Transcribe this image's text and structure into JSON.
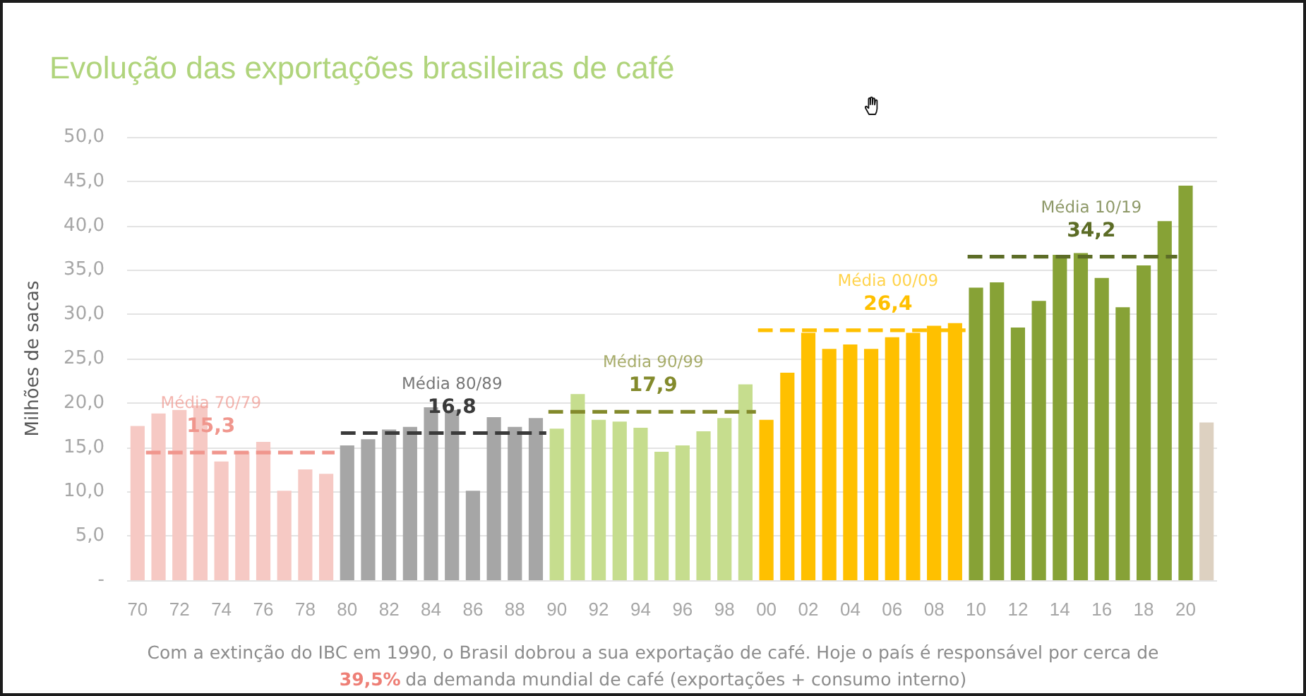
{
  "chart_data": {
    "type": "bar",
    "title": "Evolução das exportações brasileiras de café",
    "ylabel": "Milhões de sacas",
    "x": [
      1970,
      1971,
      1972,
      1973,
      1974,
      1975,
      1976,
      1977,
      1978,
      1979,
      1980,
      1981,
      1982,
      1983,
      1984,
      1985,
      1986,
      1987,
      1988,
      1989,
      1990,
      1991,
      1992,
      1993,
      1994,
      1995,
      1996,
      1997,
      1998,
      1999,
      2000,
      2001,
      2002,
      2003,
      2004,
      2005,
      2006,
      2007,
      2008,
      2009,
      2010,
      2011,
      2012,
      2013,
      2014,
      2015,
      2016,
      2017,
      2018,
      2019,
      2020,
      2021
    ],
    "series": [
      {
        "values": [
          17.4,
          18.8,
          19.2,
          19.7,
          13.4,
          14.5,
          15.6,
          10.1,
          12.5,
          12.0,
          15.2,
          15.9,
          17.0,
          17.3,
          19.5,
          19.2,
          10.1,
          18.4,
          17.3,
          18.3,
          17.1,
          21.0,
          18.1,
          17.9,
          17.2,
          14.5,
          15.2,
          16.8,
          18.3,
          22.1,
          18.1,
          23.4,
          27.9,
          26.1,
          26.6,
          26.1,
          27.4,
          27.9,
          28.7,
          29.0,
          33.0,
          33.6,
          28.5,
          31.5,
          36.7,
          36.9,
          34.1,
          30.8,
          35.5,
          40.5,
          44.5,
          17.8
        ],
        "colors": [
          "#f6c9c4",
          "#f6c9c4",
          "#f6c9c4",
          "#f6c9c4",
          "#f6c9c4",
          "#f6c9c4",
          "#f6c9c4",
          "#f6c9c4",
          "#f6c9c4",
          "#f6c9c4",
          "#a6a6a6",
          "#a6a6a6",
          "#a6a6a6",
          "#a6a6a6",
          "#a6a6a6",
          "#a6a6a6",
          "#a6a6a6",
          "#a6a6a6",
          "#a6a6a6",
          "#a6a6a6",
          "#c6dd8e",
          "#c6dd8e",
          "#c6dd8e",
          "#c6dd8e",
          "#c6dd8e",
          "#c6dd8e",
          "#c6dd8e",
          "#c6dd8e",
          "#c6dd8e",
          "#c6dd8e",
          "#ffc000",
          "#ffc000",
          "#ffc000",
          "#ffc000",
          "#ffc000",
          "#ffc000",
          "#ffc000",
          "#ffc000",
          "#ffc000",
          "#ffc000",
          "#87a236",
          "#87a236",
          "#87a236",
          "#87a236",
          "#87a236",
          "#87a236",
          "#87a236",
          "#87a236",
          "#87a236",
          "#87a236",
          "#87a236",
          "#ddd1c1"
        ]
      },
      {
        "type": "line",
        "x": [
          1970.4,
          1979.4
        ],
        "values": [
          14.4,
          14.4
        ],
        "color": "#f0968d",
        "line_style": "dashed"
      },
      {
        "type": "line",
        "x": [
          1979.7,
          1989.5
        ],
        "values": [
          16.6,
          16.6
        ],
        "color": "#3a3a3a",
        "line_style": "dashed"
      },
      {
        "type": "line",
        "x": [
          1989.6,
          1999.5
        ],
        "values": [
          19.0,
          19.0
        ],
        "color": "#838a2c",
        "line_style": "dashed"
      },
      {
        "type": "line",
        "x": [
          1999.6,
          2009.5
        ],
        "values": [
          28.2,
          28.2
        ],
        "color": "#ffc000",
        "line_style": "dashed"
      },
      {
        "type": "line",
        "x": [
          2009.6,
          2019.6
        ],
        "values": [
          36.5,
          36.5
        ],
        "color": "#5c6c26",
        "line_style": "dashed"
      }
    ],
    "xlim": [
      1969.5,
      2021.5
    ],
    "xticks": [
      {
        "value": 1970,
        "label": "70"
      },
      {
        "value": 1972,
        "label": "72"
      },
      {
        "value": 1974,
        "label": "74"
      },
      {
        "value": 1976,
        "label": "76"
      },
      {
        "value": 1978,
        "label": "78"
      },
      {
        "value": 1980,
        "label": "80"
      },
      {
        "value": 1982,
        "label": "82"
      },
      {
        "value": 1984,
        "label": "84"
      },
      {
        "value": 1986,
        "label": "86"
      },
      {
        "value": 1988,
        "label": "88"
      },
      {
        "value": 1990,
        "label": "90"
      },
      {
        "value": 1992,
        "label": "92"
      },
      {
        "value": 1994,
        "label": "94"
      },
      {
        "value": 1996,
        "label": "96"
      },
      {
        "value": 1998,
        "label": "98"
      },
      {
        "value": 2000,
        "label": "00"
      },
      {
        "value": 2002,
        "label": "02"
      },
      {
        "value": 2004,
        "label": "04"
      },
      {
        "value": 2006,
        "label": "06"
      },
      {
        "value": 2008,
        "label": "08"
      },
      {
        "value": 2010,
        "label": "10"
      },
      {
        "value": 2012,
        "label": "12"
      },
      {
        "value": 2014,
        "label": "14"
      },
      {
        "value": 2016,
        "label": "16"
      },
      {
        "value": 2018,
        "label": "18"
      },
      {
        "value": 2020,
        "label": "20"
      }
    ],
    "ylim": [
      0,
      50
    ],
    "yticks": [
      {
        "value": 0,
        "label": "-"
      },
      {
        "value": 5,
        "label": "5,0"
      },
      {
        "value": 10,
        "label": "10,0"
      },
      {
        "value": 15,
        "label": "15,0"
      },
      {
        "value": 20,
        "label": "20,0"
      },
      {
        "value": 25,
        "label": "25,0"
      },
      {
        "value": 30,
        "label": "30,0"
      },
      {
        "value": 35,
        "label": "35,0"
      },
      {
        "value": 40,
        "label": "40,0"
      },
      {
        "value": 45,
        "label": "45,0"
      },
      {
        "value": 50,
        "label": "50,0"
      }
    ],
    "grid": "y",
    "annotations": [
      {
        "text": "Média 70/79\n15,3",
        "x": 1973.5,
        "y": 14.4
      },
      {
        "text": "Média 80/89\n16,8",
        "x": 1985.0,
        "y": 16.6
      },
      {
        "text": "Média 90/99\n17,9",
        "x": 1994.6,
        "y": 19.0
      },
      {
        "text": "Média 00/09\n26,4",
        "x": 2005.8,
        "y": 28.2
      },
      {
        "text": "Média 10/19\n34,2",
        "x": 2015.5,
        "y": 36.5
      },
      "Com a extinção do IBC em 1990, o Brasil dobrou a sua exportação de café. Hoje o país é responsável por cerca de",
      "39,5%",
      "da demanda mundial de café (exportações + consumo interno)"
    ]
  }
}
